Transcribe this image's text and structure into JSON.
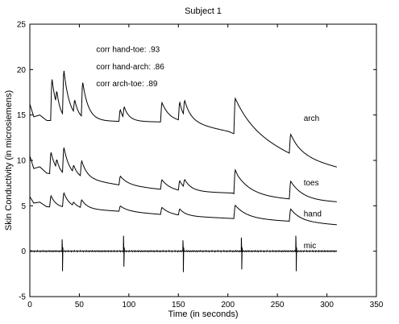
{
  "chart_data": {
    "type": "line",
    "title": "Subject 1",
    "xlabel": "Time (in seconds)",
    "ylabel": "Skin Conductivity (in microsiemens)",
    "xlim": [
      0,
      350
    ],
    "ylim": [
      -5,
      25
    ],
    "xticks": [
      0,
      50,
      100,
      150,
      200,
      250,
      300,
      350
    ],
    "yticks": [
      -5,
      0,
      5,
      10,
      15,
      20,
      25
    ],
    "grid": false,
    "legend": "none",
    "line_color": "#000000",
    "annotations": [
      {
        "text": "corr hand-toe: .93",
        "x": 67,
        "y": 22.3
      },
      {
        "text": "corr hand-arch: .86",
        "x": 67,
        "y": 20.4
      },
      {
        "text": "corr arch-toe: .89",
        "x": 67,
        "y": 18.5
      }
    ],
    "series": [
      {
        "name": "arch",
        "label_pos": [
          270,
          14.7
        ],
        "baseline": [
          [
            0,
            16.2
          ],
          [
            4,
            14.8
          ],
          [
            10,
            15.0
          ],
          [
            17,
            14.4
          ],
          [
            155,
            14.2
          ],
          [
            200,
            13.2
          ],
          [
            270,
            10.2
          ],
          [
            310,
            9.2
          ]
        ],
        "responses": [
          {
            "t": 21,
            "amp": 4.8,
            "tau": 5
          },
          {
            "t": 26,
            "amp": 1.6,
            "tau": 3
          },
          {
            "t": 33,
            "amp": 5.2,
            "tau": 6
          },
          {
            "t": 44,
            "amp": 1.5,
            "tau": 4
          },
          {
            "t": 52,
            "amp": 4.0,
            "tau": 6
          },
          {
            "t": 90,
            "amp": 1.4,
            "tau": 3
          },
          {
            "t": 94,
            "amp": 1.3,
            "tau": 6
          },
          {
            "t": 132,
            "amp": 2.2,
            "tau": 8
          },
          {
            "t": 150,
            "amp": 2.1,
            "tau": 4
          },
          {
            "t": 155,
            "amp": 1.8,
            "tau": 8
          },
          {
            "t": 206,
            "amp": 4.0,
            "tau": 20
          },
          {
            "t": 262,
            "amp": 2.2,
            "tau": 12
          }
        ]
      },
      {
        "name": "toes",
        "label_pos": [
          270,
          7.6
        ],
        "baseline": [
          [
            0,
            10.5
          ],
          [
            4,
            9.1
          ],
          [
            10,
            9.3
          ],
          [
            17,
            8.6
          ],
          [
            90,
            7.3
          ],
          [
            150,
            6.6
          ],
          [
            205,
            6.4
          ],
          [
            210,
            6.0
          ],
          [
            260,
            5.7
          ],
          [
            290,
            5.5
          ],
          [
            310,
            5.4
          ]
        ],
        "responses": [
          {
            "t": 20,
            "amp": 2.5,
            "tau": 5
          },
          {
            "t": 26,
            "amp": 1.0,
            "tau": 3
          },
          {
            "t": 33,
            "amp": 3.0,
            "tau": 6
          },
          {
            "t": 43,
            "amp": 0.8,
            "tau": 4
          },
          {
            "t": 51,
            "amp": 1.8,
            "tau": 6
          },
          {
            "t": 90,
            "amp": 1.0,
            "tau": 8
          },
          {
            "t": 132,
            "amp": 1.1,
            "tau": 8
          },
          {
            "t": 150,
            "amp": 1.1,
            "tau": 5
          },
          {
            "t": 155,
            "amp": 0.9,
            "tau": 8
          },
          {
            "t": 206,
            "amp": 2.8,
            "tau": 15
          },
          {
            "t": 262,
            "amp": 2.0,
            "tau": 12
          }
        ]
      },
      {
        "name": "hand",
        "label_pos": [
          270,
          4.2
        ],
        "baseline": [
          [
            0,
            6.0
          ],
          [
            4,
            5.3
          ],
          [
            10,
            5.4
          ],
          [
            17,
            4.9
          ],
          [
            90,
            4.4
          ],
          [
            150,
            3.9
          ],
          [
            205,
            3.6
          ],
          [
            260,
            3.3
          ],
          [
            310,
            2.9
          ]
        ],
        "responses": [
          {
            "t": 20,
            "amp": 1.3,
            "tau": 5
          },
          {
            "t": 33,
            "amp": 1.6,
            "tau": 6
          },
          {
            "t": 43,
            "amp": 0.4,
            "tau": 4
          },
          {
            "t": 51,
            "amp": 0.9,
            "tau": 6
          },
          {
            "t": 90,
            "amp": 0.6,
            "tau": 8
          },
          {
            "t": 132,
            "amp": 0.8,
            "tau": 8
          },
          {
            "t": 150,
            "amp": 0.7,
            "tau": 6
          },
          {
            "t": 206,
            "amp": 1.5,
            "tau": 12
          },
          {
            "t": 262,
            "amp": 1.4,
            "tau": 10
          }
        ]
      },
      {
        "name": "mic",
        "label_pos": [
          270,
          0.7
        ],
        "baseline": [
          [
            0,
            0
          ],
          [
            310,
            0
          ]
        ],
        "spikes": [
          {
            "t": 33,
            "up": 1.3,
            "down": -2.2
          },
          {
            "t": 95,
            "up": 1.7,
            "down": -1.7
          },
          {
            "t": 155,
            "up": 1.2,
            "down": -2.3
          },
          {
            "t": 214,
            "up": 1.5,
            "down": -2.0
          },
          {
            "t": 269,
            "up": 1.7,
            "down": -2.2
          }
        ]
      }
    ]
  }
}
